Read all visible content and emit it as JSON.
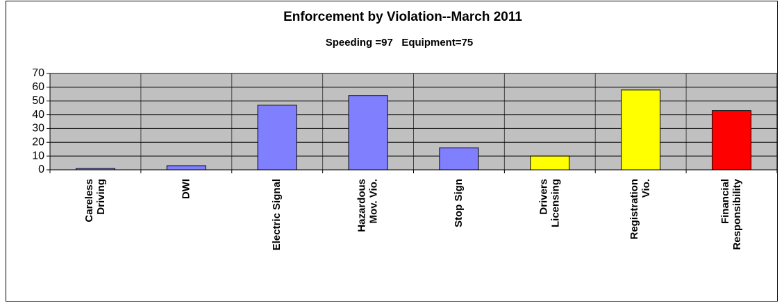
{
  "chart_data": {
    "type": "bar",
    "title": "Enforcement by Violation--March 2011",
    "subtitle": "Speeding =97   Equipment=75",
    "categories": [
      [
        "Careless",
        "Driving"
      ],
      [
        "DWI"
      ],
      [
        "Electric Signal"
      ],
      [
        "Hazardous",
        "Mov. Vio."
      ],
      [
        "Stop Sign"
      ],
      [
        "Drivers",
        "Licensing"
      ],
      [
        "Registration",
        "Vio."
      ],
      [
        "Financial",
        "Responsibility"
      ]
    ],
    "values": [
      1,
      3,
      47,
      54,
      16,
      10,
      58,
      43
    ],
    "colors": [
      "#8080ff",
      "#8080ff",
      "#8080ff",
      "#8080ff",
      "#8080ff",
      "#ffff00",
      "#ffff00",
      "#ff0000"
    ],
    "ylim": [
      0,
      70
    ],
    "yticks": [
      0,
      10,
      20,
      30,
      40,
      50,
      60,
      70
    ],
    "grid": true
  }
}
